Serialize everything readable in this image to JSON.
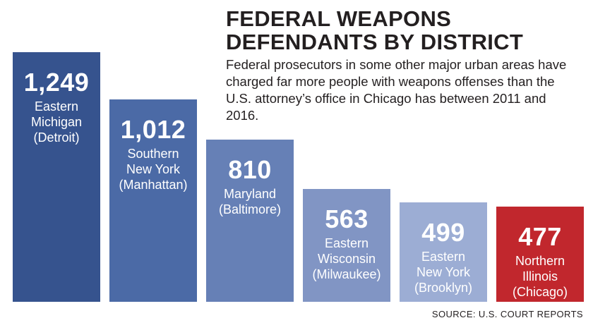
{
  "chart_data": {
    "type": "bar",
    "title_lines": [
      "FEDERAL WEAPONS",
      "DEFENDANTS BY DISTRICT"
    ],
    "subtitle": "Federal prosecutors in some other major urban areas have charged far more people with weapons offenses than the U.S. attorney’s office in Chicago has between 2011 and 2016.",
    "source": "SOURCE: U.S. COURT REPORTS",
    "ylim": [
      0,
      1249
    ],
    "bars": [
      {
        "value": 1249,
        "value_label": "1,249",
        "label_lines": [
          "Eastern",
          "Michigan",
          "(Detroit)"
        ],
        "color": "#36538e"
      },
      {
        "value": 1012,
        "value_label": "1,012",
        "label_lines": [
          "Southern",
          "New York",
          "(Manhattan)"
        ],
        "color": "#4b6aa6"
      },
      {
        "value": 810,
        "value_label": "810",
        "label_lines": [
          "Maryland",
          "(Baltimore)"
        ],
        "color": "#6680b6"
      },
      {
        "value": 563,
        "value_label": "563",
        "label_lines": [
          "Eastern",
          "Wisconsin",
          "(Milwaukee)"
        ],
        "color": "#8195c4"
      },
      {
        "value": 499,
        "value_label": "499",
        "label_lines": [
          "Eastern",
          "New York",
          "(Brooklyn)"
        ],
        "color": "#9cadd4"
      },
      {
        "value": 477,
        "value_label": "477",
        "label_lines": [
          "Northern",
          "Illinois",
          "(Chicago)"
        ],
        "color": "#c1272d"
      }
    ]
  }
}
